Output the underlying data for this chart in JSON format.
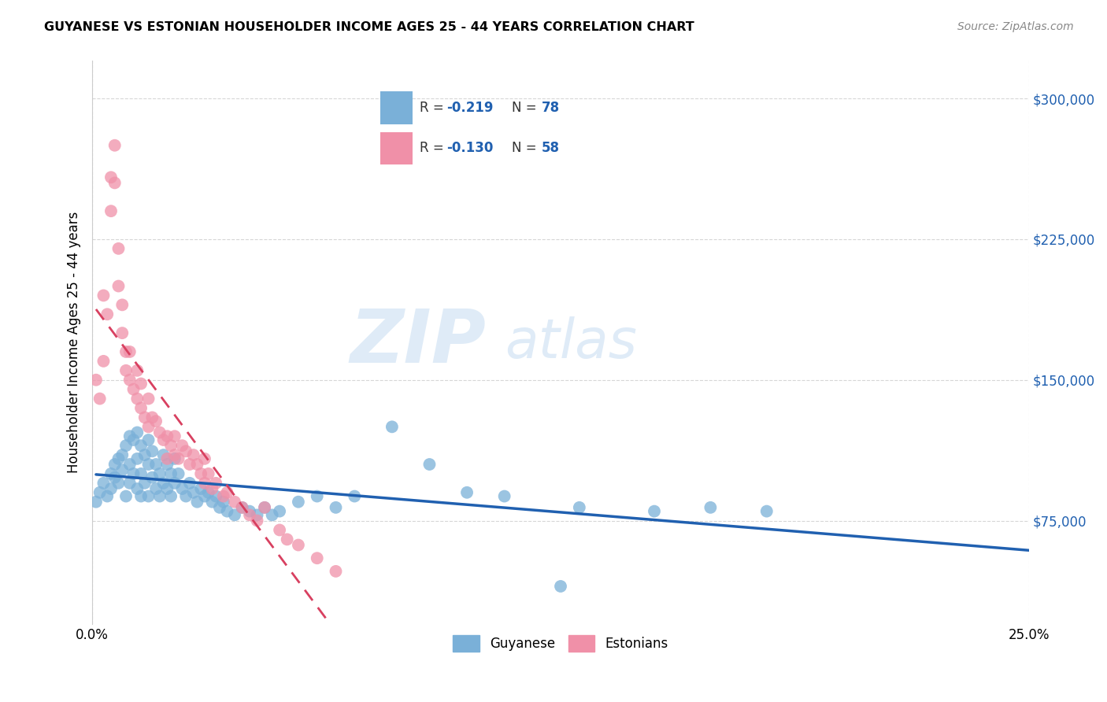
{
  "title": "GUYANESE VS ESTONIAN HOUSEHOLDER INCOME AGES 25 - 44 YEARS CORRELATION CHART",
  "source": "Source: ZipAtlas.com",
  "ylabel_label": "Householder Income Ages 25 - 44 years",
  "xlim": [
    0.0,
    0.25
  ],
  "ylim": [
    20000,
    320000
  ],
  "ytick_vals": [
    75000,
    150000,
    225000,
    300000
  ],
  "xtick_vals": [
    0.0,
    0.25
  ],
  "blue_color": "#a8c8e8",
  "pink_color": "#f4a8b8",
  "blue_line_color": "#2060b0",
  "pink_line_color": "#d84060",
  "blue_scatter_color": "#7ab0d8",
  "pink_scatter_color": "#f090a8",
  "guyanese_x": [
    0.001,
    0.002,
    0.003,
    0.004,
    0.005,
    0.005,
    0.006,
    0.006,
    0.007,
    0.007,
    0.008,
    0.008,
    0.009,
    0.009,
    0.01,
    0.01,
    0.01,
    0.011,
    0.011,
    0.012,
    0.012,
    0.012,
    0.013,
    0.013,
    0.013,
    0.014,
    0.014,
    0.015,
    0.015,
    0.015,
    0.016,
    0.016,
    0.017,
    0.017,
    0.018,
    0.018,
    0.019,
    0.019,
    0.02,
    0.02,
    0.021,
    0.021,
    0.022,
    0.022,
    0.023,
    0.024,
    0.025,
    0.026,
    0.027,
    0.028,
    0.029,
    0.03,
    0.031,
    0.032,
    0.033,
    0.034,
    0.035,
    0.036,
    0.038,
    0.04,
    0.042,
    0.044,
    0.046,
    0.048,
    0.05,
    0.055,
    0.06,
    0.065,
    0.07,
    0.08,
    0.09,
    0.1,
    0.11,
    0.13,
    0.15,
    0.165,
    0.18,
    0.125
  ],
  "guyanese_y": [
    85000,
    90000,
    95000,
    88000,
    92000,
    100000,
    105000,
    98000,
    108000,
    95000,
    110000,
    102000,
    115000,
    88000,
    120000,
    105000,
    95000,
    118000,
    100000,
    108000,
    122000,
    92000,
    115000,
    100000,
    88000,
    110000,
    95000,
    118000,
    105000,
    88000,
    112000,
    98000,
    105000,
    92000,
    100000,
    88000,
    110000,
    95000,
    105000,
    92000,
    100000,
    88000,
    95000,
    108000,
    100000,
    92000,
    88000,
    95000,
    90000,
    85000,
    92000,
    88000,
    90000,
    85000,
    88000,
    82000,
    85000,
    80000,
    78000,
    82000,
    80000,
    78000,
    82000,
    78000,
    80000,
    85000,
    88000,
    82000,
    88000,
    125000,
    105000,
    90000,
    88000,
    82000,
    80000,
    82000,
    80000,
    40000
  ],
  "estonian_x": [
    0.001,
    0.002,
    0.003,
    0.003,
    0.004,
    0.005,
    0.005,
    0.006,
    0.006,
    0.007,
    0.007,
    0.008,
    0.008,
    0.009,
    0.009,
    0.01,
    0.01,
    0.011,
    0.012,
    0.012,
    0.013,
    0.013,
    0.014,
    0.015,
    0.015,
    0.016,
    0.017,
    0.018,
    0.019,
    0.02,
    0.02,
    0.021,
    0.022,
    0.022,
    0.023,
    0.024,
    0.025,
    0.026,
    0.027,
    0.028,
    0.029,
    0.03,
    0.03,
    0.031,
    0.032,
    0.033,
    0.035,
    0.036,
    0.038,
    0.04,
    0.042,
    0.044,
    0.046,
    0.05,
    0.052,
    0.055,
    0.06,
    0.065
  ],
  "estonian_y": [
    150000,
    140000,
    195000,
    160000,
    185000,
    258000,
    240000,
    275000,
    255000,
    200000,
    220000,
    175000,
    190000,
    165000,
    155000,
    150000,
    165000,
    145000,
    140000,
    155000,
    135000,
    148000,
    130000,
    140000,
    125000,
    130000,
    128000,
    122000,
    118000,
    120000,
    108000,
    115000,
    110000,
    120000,
    108000,
    115000,
    112000,
    105000,
    110000,
    105000,
    100000,
    108000,
    95000,
    100000,
    92000,
    95000,
    88000,
    90000,
    85000,
    82000,
    78000,
    75000,
    82000,
    70000,
    65000,
    62000,
    55000,
    48000
  ]
}
